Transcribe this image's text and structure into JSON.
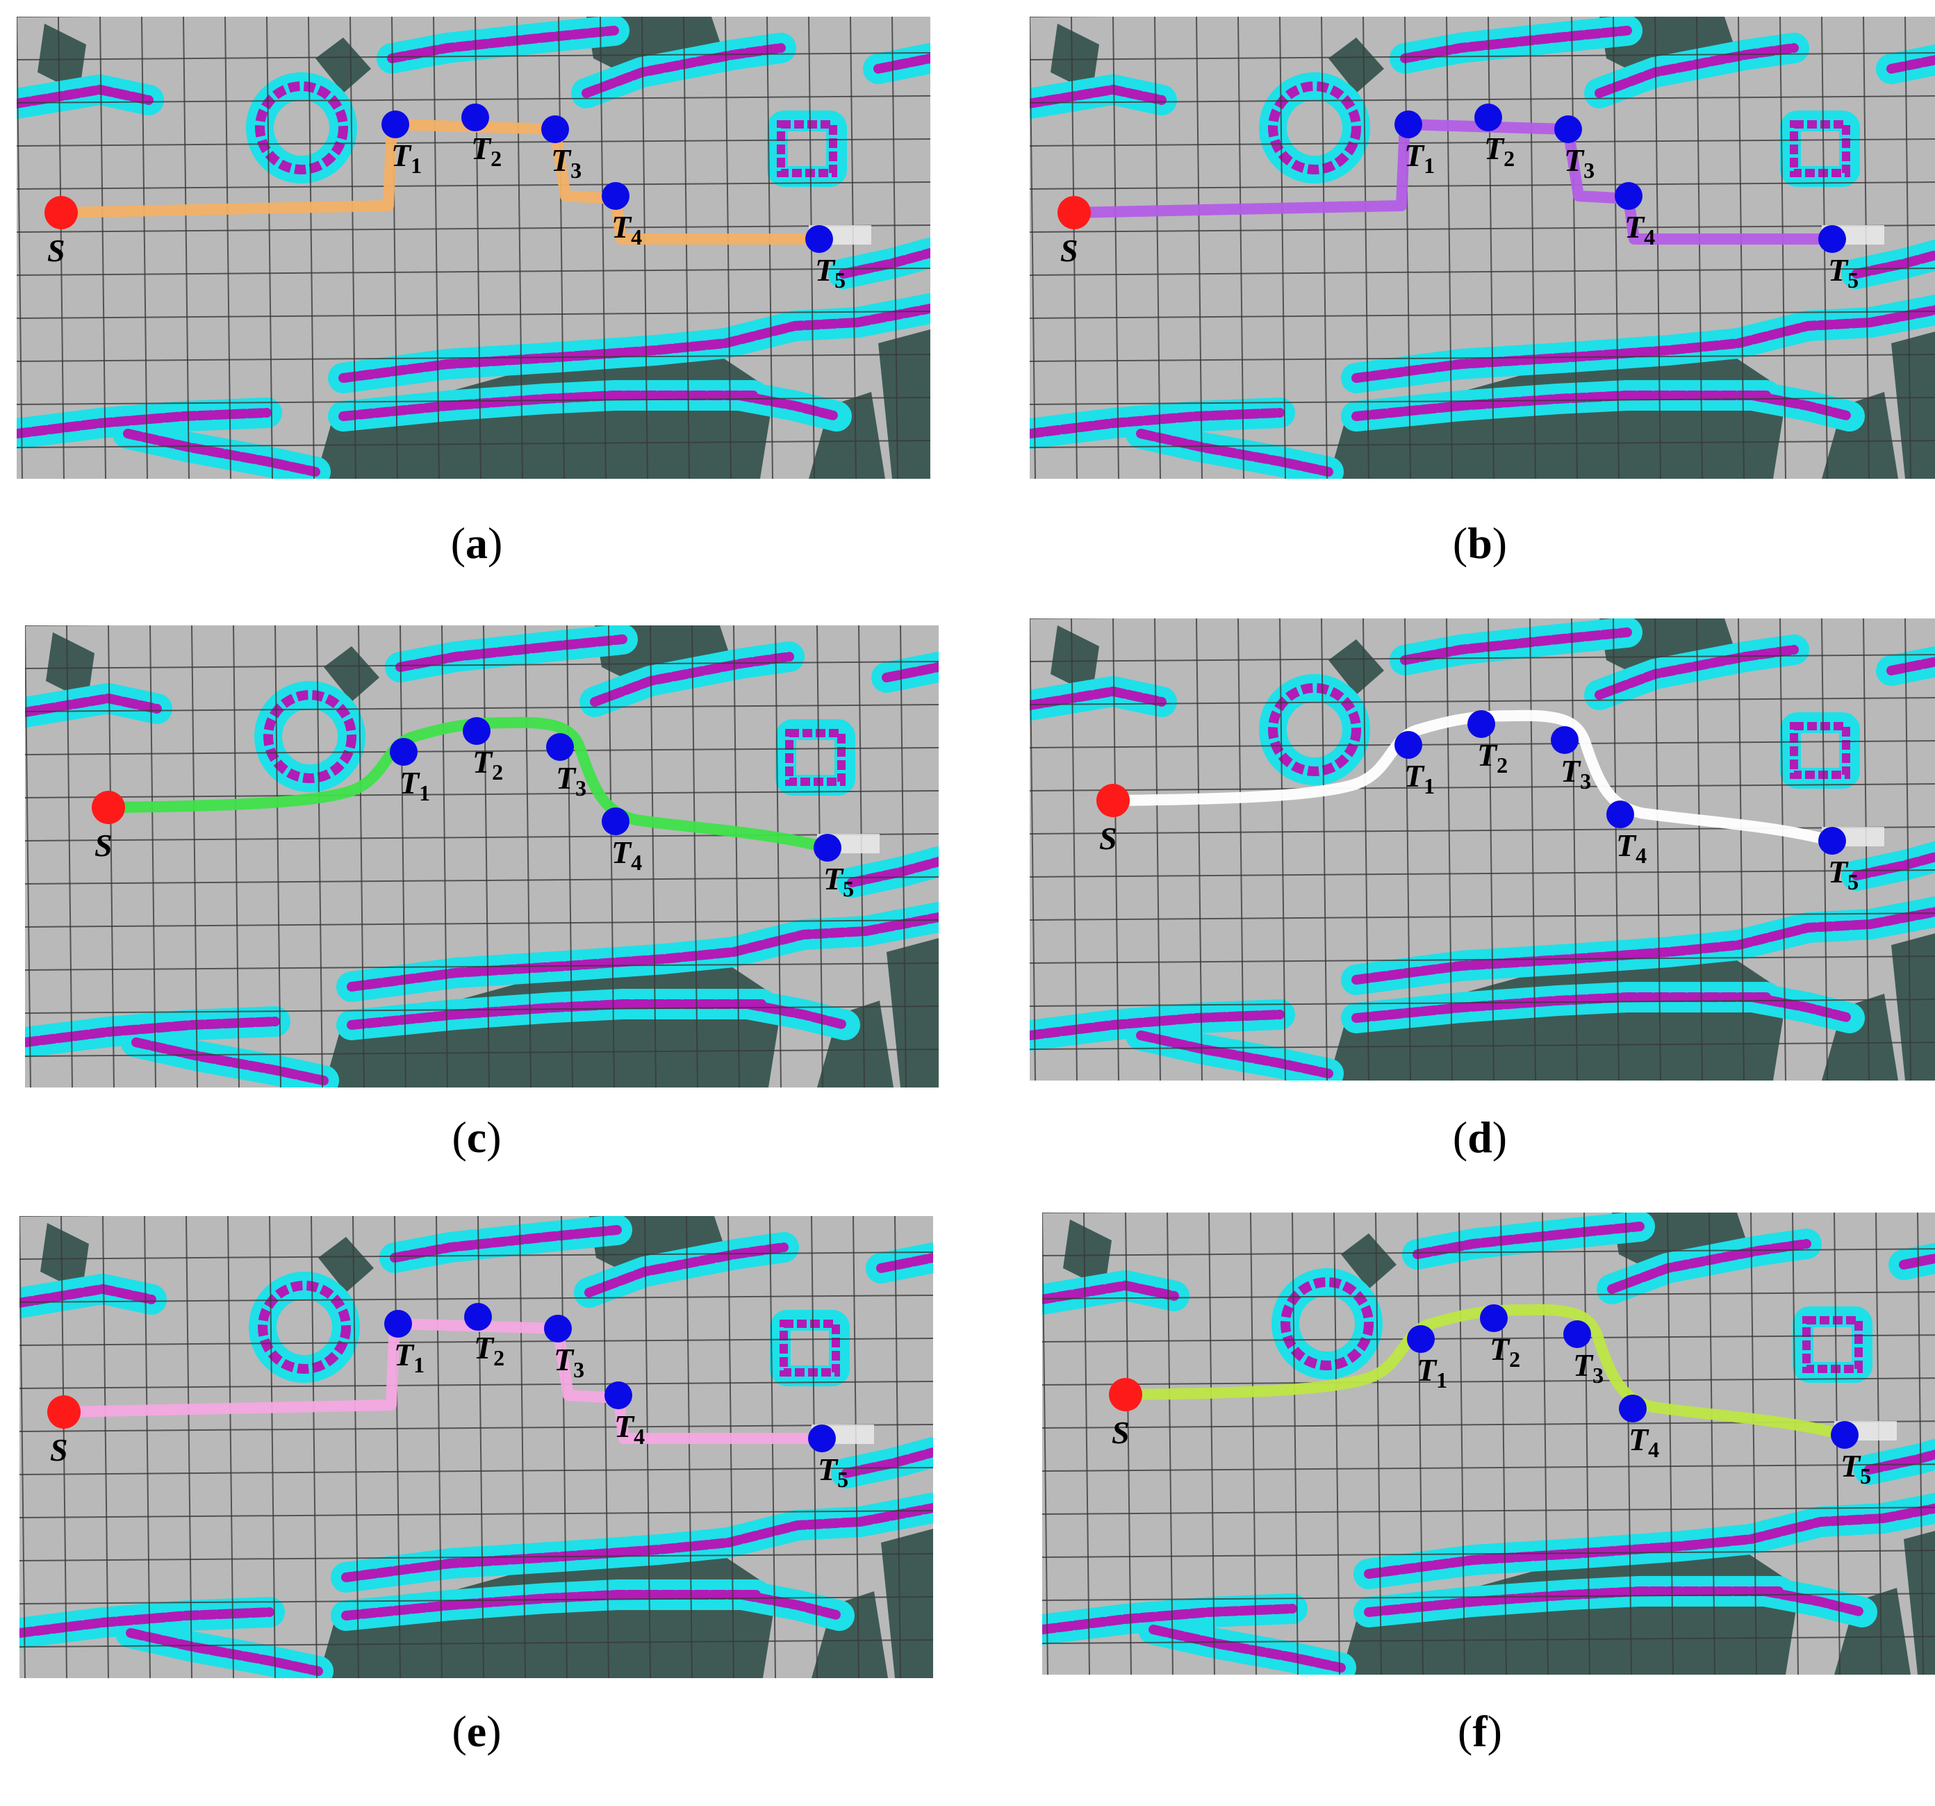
{
  "colors": {
    "floor": "#b9b9b9",
    "grid": "#3a3a3a",
    "obstacle": "#3f5a55",
    "inflation": "#1ee0e8",
    "wall": "#b21bb6",
    "start": "#ff1a1a",
    "target": "#0a0ae6"
  },
  "panels": [
    {
      "id": "a",
      "caption_open": "(",
      "caption_letter": "a",
      "caption_close": ")",
      "path_color": "#f2b066",
      "style": "orthogonal",
      "start_label": "S",
      "targets": [
        "T1",
        "T2",
        "T3",
        "T4",
        "T5"
      ]
    },
    {
      "id": "b",
      "caption_open": "(",
      "caption_letter": "b",
      "caption_close": ")",
      "path_color": "#b35de6",
      "style": "orthogonal",
      "start_label": "S",
      "targets": [
        "T1",
        "T2",
        "T3",
        "T4",
        "T5"
      ]
    },
    {
      "id": "c",
      "caption_open": "(",
      "caption_letter": "c",
      "caption_close": ")",
      "path_color": "#3ee04a",
      "style": "smooth",
      "start_label": "S",
      "targets": [
        "T1",
        "T2",
        "T3",
        "T4",
        "T5"
      ]
    },
    {
      "id": "d",
      "caption_open": "(",
      "caption_letter": "d",
      "caption_close": ")",
      "path_color": "#ffffff",
      "style": "smooth",
      "start_label": "S",
      "targets": [
        "T1",
        "T2",
        "T3",
        "T4",
        "T5"
      ]
    },
    {
      "id": "e",
      "caption_open": "(",
      "caption_letter": "e",
      "caption_close": ")",
      "path_color": "#f3a8e2",
      "style": "orthogonal",
      "start_label": "S",
      "targets": [
        "T1",
        "T2",
        "T3",
        "T4",
        "T5"
      ]
    },
    {
      "id": "f",
      "caption_open": "(",
      "caption_letter": "f",
      "caption_close": ")",
      "path_color": "#bde643",
      "style": "smooth",
      "start_label": "S",
      "targets": [
        "T1",
        "T2",
        "T3",
        "T4",
        "T5"
      ]
    }
  ]
}
